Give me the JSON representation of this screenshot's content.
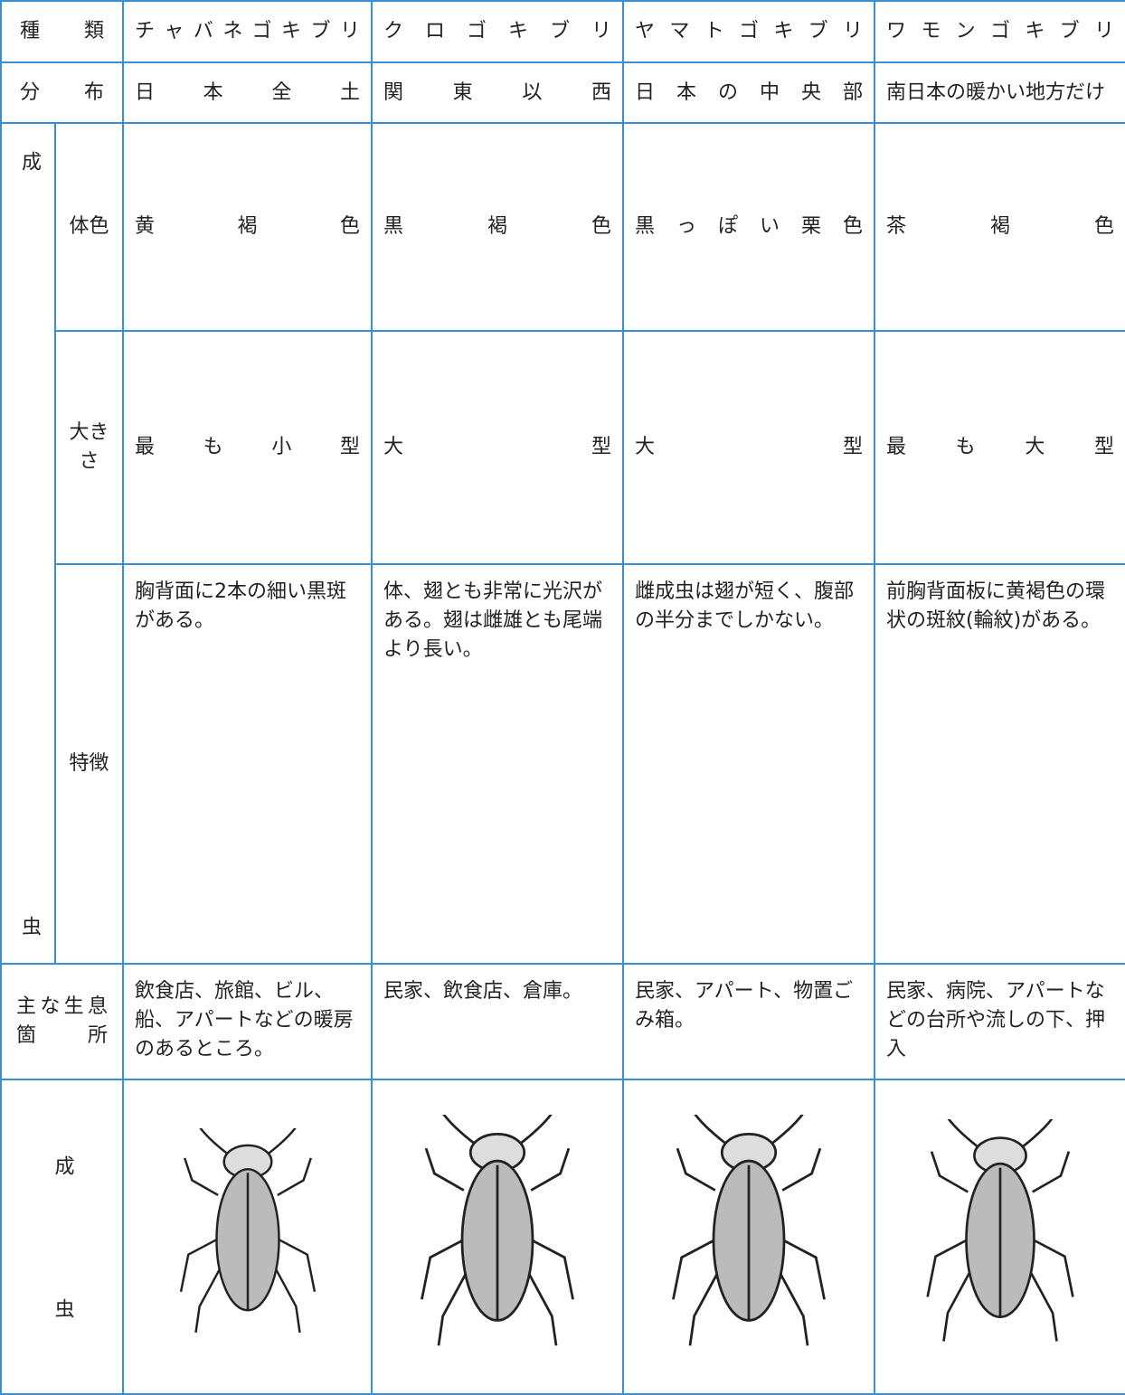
{
  "table": {
    "header": {
      "label": "種類",
      "species": [
        "チャバネゴキブリ",
        "クロゴキブリ",
        "ヤマトゴキブリ",
        "ワモンゴキブリ"
      ]
    },
    "distribution": {
      "label": "分布",
      "values": [
        "日本全土",
        "関東以西",
        "日本の中央部",
        "南日本の暖かい地方だけ"
      ]
    },
    "adult": {
      "label": "成虫",
      "rows": [
        {
          "label": "体色",
          "values": [
            "黄褐色",
            "黒褐色",
            "黒っぽい栗色",
            "茶褐色"
          ]
        },
        {
          "label": "大きさ",
          "values": [
            "最も小型",
            "大型",
            "大型",
            "最も大型"
          ]
        },
        {
          "label": "特徴",
          "values": [
            "胸背面に2本の細い黒斑がある。",
            "体、翅とも非常に光沢がある。翅は雌雄とも尾端より長い。",
            "雌成虫は翅が短く、腹部の半分までしかない。",
            "前胸背面板に黄褐色の環状の斑紋(輪紋)がある。"
          ]
        }
      ]
    },
    "habitat": {
      "label": "主な生息箇所",
      "values": [
        "飲食店、旅館、ビル、船、アパートなどの暖房のあるところ。",
        "民家、飲食店、倉庫。",
        "民家、アパート、物置ごみ箱。",
        "民家、病院、アパートなどの台所や流しの下、押入"
      ]
    },
    "image_row": {
      "label": "成虫"
    }
  }
}
